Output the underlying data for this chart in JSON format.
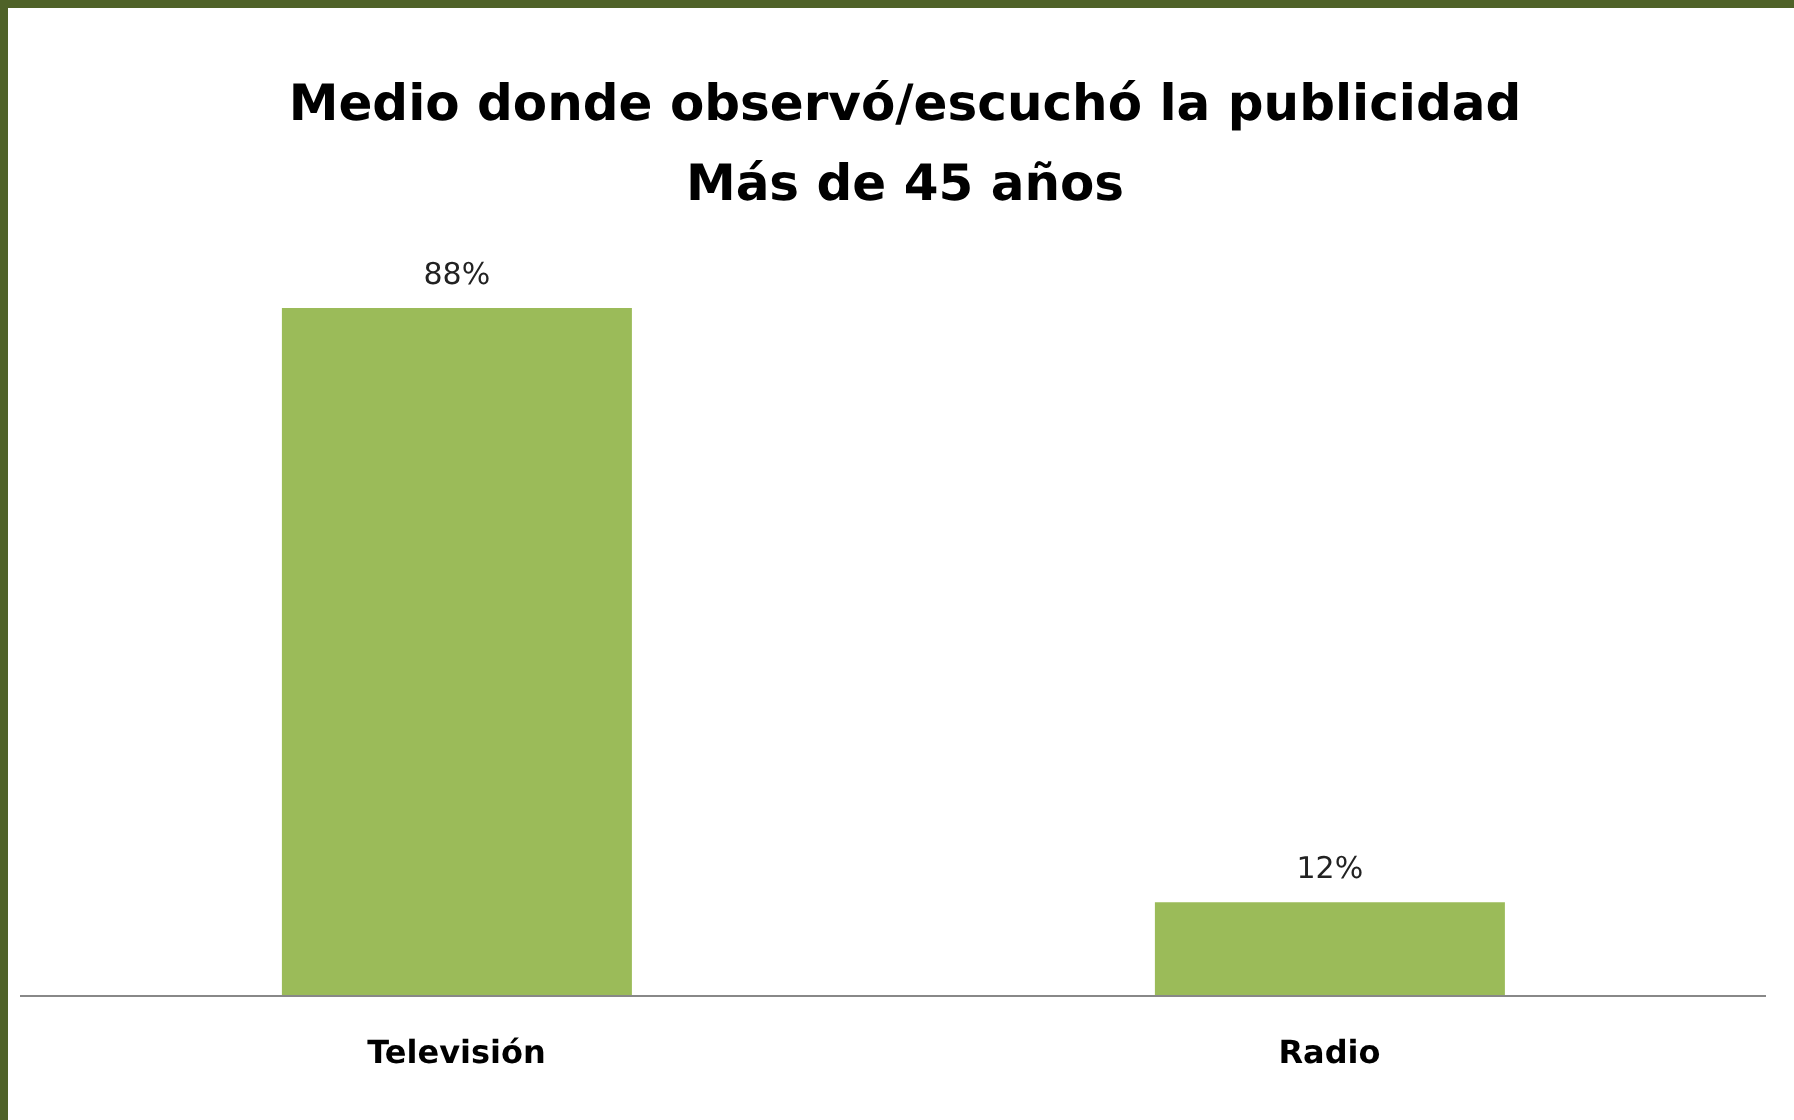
{
  "chart_data": {
    "type": "bar",
    "title": "Medio donde observó/escuchó la publicidad\nMás de 45 años",
    "categories": [
      "Televisión",
      "Radio"
    ],
    "values": [
      88,
      12
    ],
    "value_labels": [
      "88%",
      "12%"
    ],
    "color": "#9bbb59",
    "grid": false,
    "legend": false
  }
}
